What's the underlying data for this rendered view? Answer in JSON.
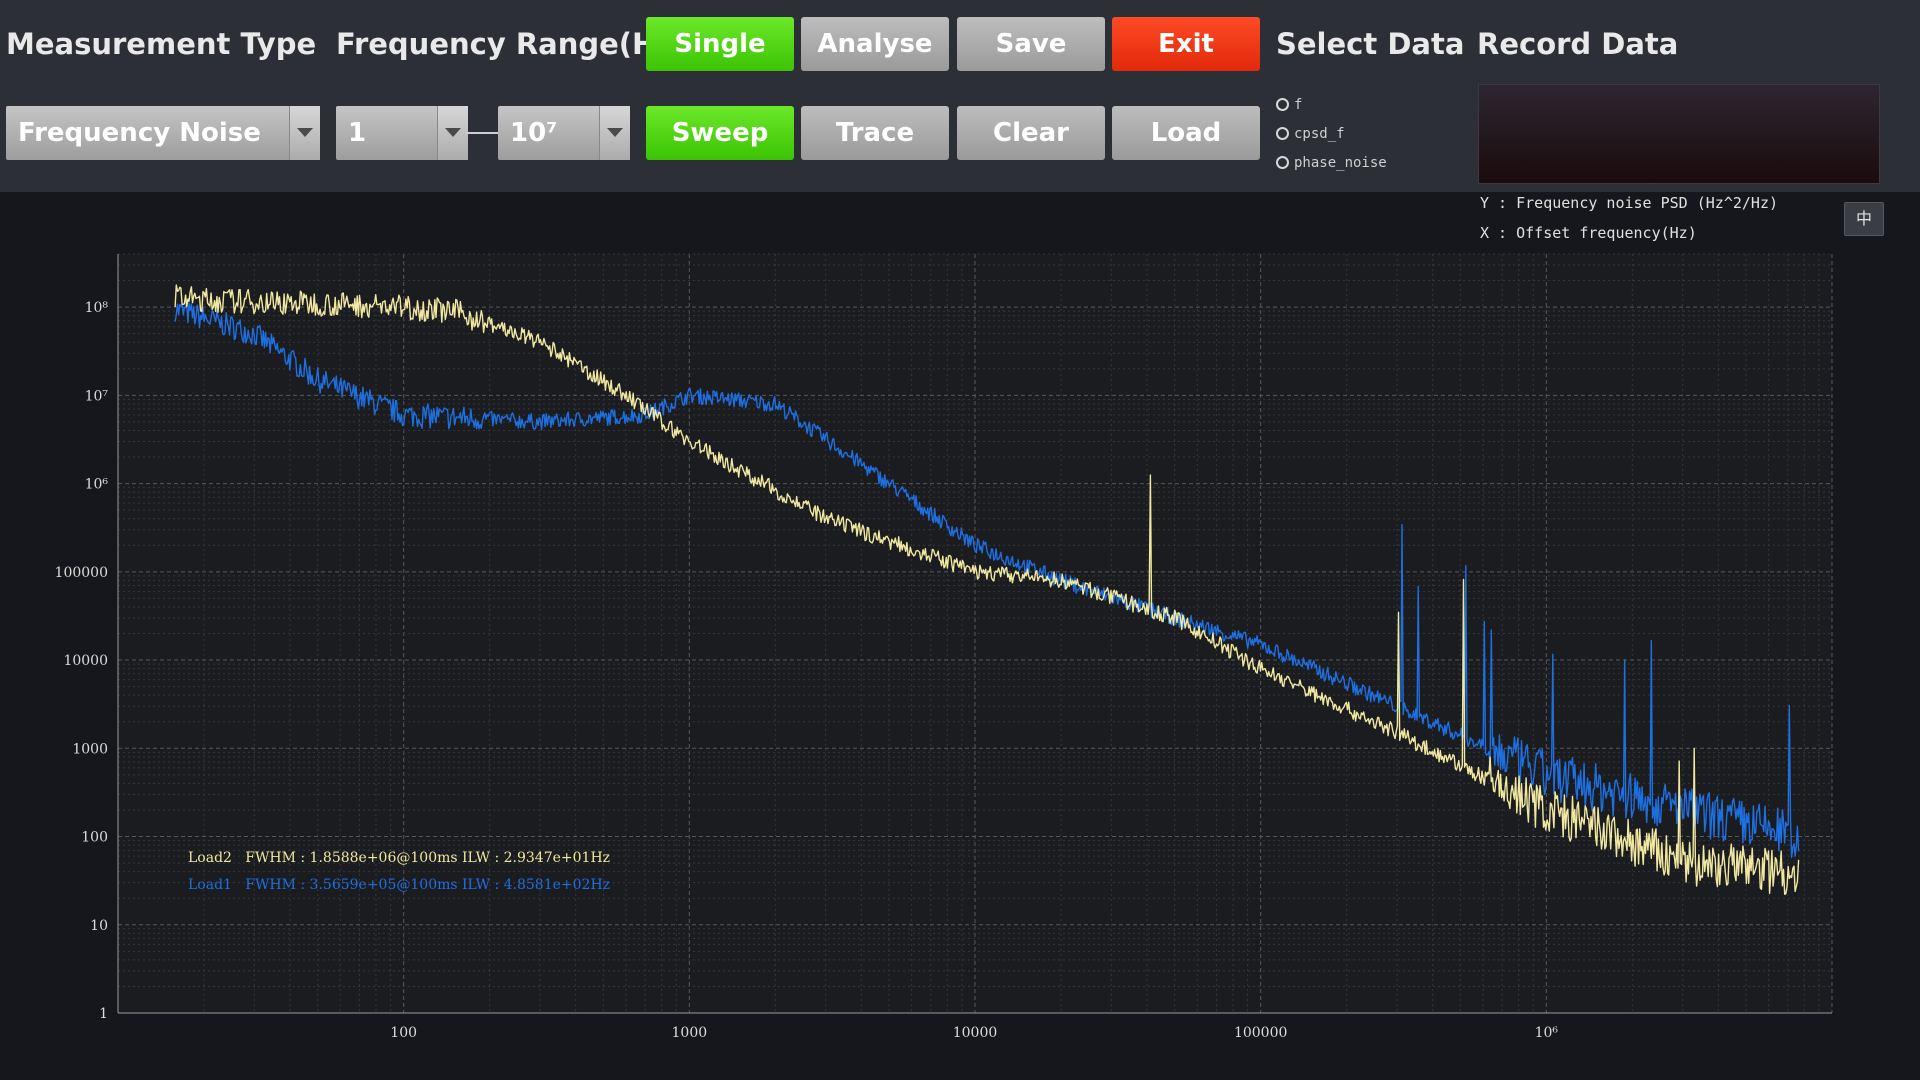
{
  "toolbar": {
    "measurement_type_label": "Measurement Type",
    "frequency_range_label": "Frequency Range(Hz)",
    "measurement_type_value": "Frequency Noise",
    "range_start_value": "1",
    "range_end_value": "10⁷",
    "single_label": "Single",
    "analyse_label": "Analyse",
    "save_label": "Save",
    "exit_label": "Exit",
    "sweep_label": "Sweep",
    "trace_label": "Trace",
    "clear_label": "Clear",
    "load_label": "Load",
    "select_data_label": "Select Data",
    "record_data_label": "Record Data",
    "select_options": [
      "f",
      "cpsd_f",
      "phase_noise"
    ]
  },
  "plot_info": {
    "y_label": "Y : Frequency noise PSD (Hz^2/Hz)",
    "x_label": "X : Offset frequency(Hz)",
    "lang_button": "中"
  },
  "colors": {
    "accent_green": "#4cd611",
    "exit_red": "#f0340f",
    "load2_yellow": "#f0e8a0",
    "load1_blue": "#1e6fe0"
  },
  "chart_data": {
    "type": "line",
    "x_scale": "log",
    "y_scale": "log",
    "xlim": [
      10,
      10000000
    ],
    "ylim": [
      1,
      400000000
    ],
    "grid": true,
    "x_ticks": [
      "100",
      "1000",
      "10000",
      "100000",
      "10⁶"
    ],
    "y_ticks": [
      "10⁸",
      "10⁷",
      "10⁶",
      "100000",
      "10000",
      "1000",
      "100",
      "10",
      "1"
    ],
    "series": [
      {
        "name": "Load2",
        "color": "#f0e8a0",
        "x": [
          10,
          20,
          50,
          100,
          150,
          300,
          600,
          1000,
          3000,
          10000,
          20000,
          50000,
          100000,
          300000,
          1000000,
          3000000,
          8000000
        ],
        "y": [
          150000000,
          120000000,
          110000000,
          100000000,
          90000000,
          40000000,
          10000000,
          3000000,
          400000,
          100000,
          80000,
          30000,
          8000,
          1500,
          200,
          50,
          40
        ]
      },
      {
        "name": "Load1",
        "color": "#1e6fe0",
        "x": [
          10,
          30,
          50,
          100,
          300,
          700,
          1000,
          2000,
          5000,
          10000,
          20000,
          50000,
          100000,
          300000,
          1000000,
          3000000,
          8000000
        ],
        "y": [
          150000000,
          50000000,
          15000000,
          6000000,
          5000000,
          6000000,
          10000000,
          8000000,
          1000000,
          200000,
          80000,
          30000,
          15000,
          3000,
          500,
          200,
          100
        ]
      }
    ],
    "annotations": [
      "Load2   FWHM : 1.8588e+06@100ms ILW : 2.9347e+01Hz",
      "Load1   FWHM : 3.5659e+05@100ms ILW : 4.8581e+02Hz"
    ]
  }
}
